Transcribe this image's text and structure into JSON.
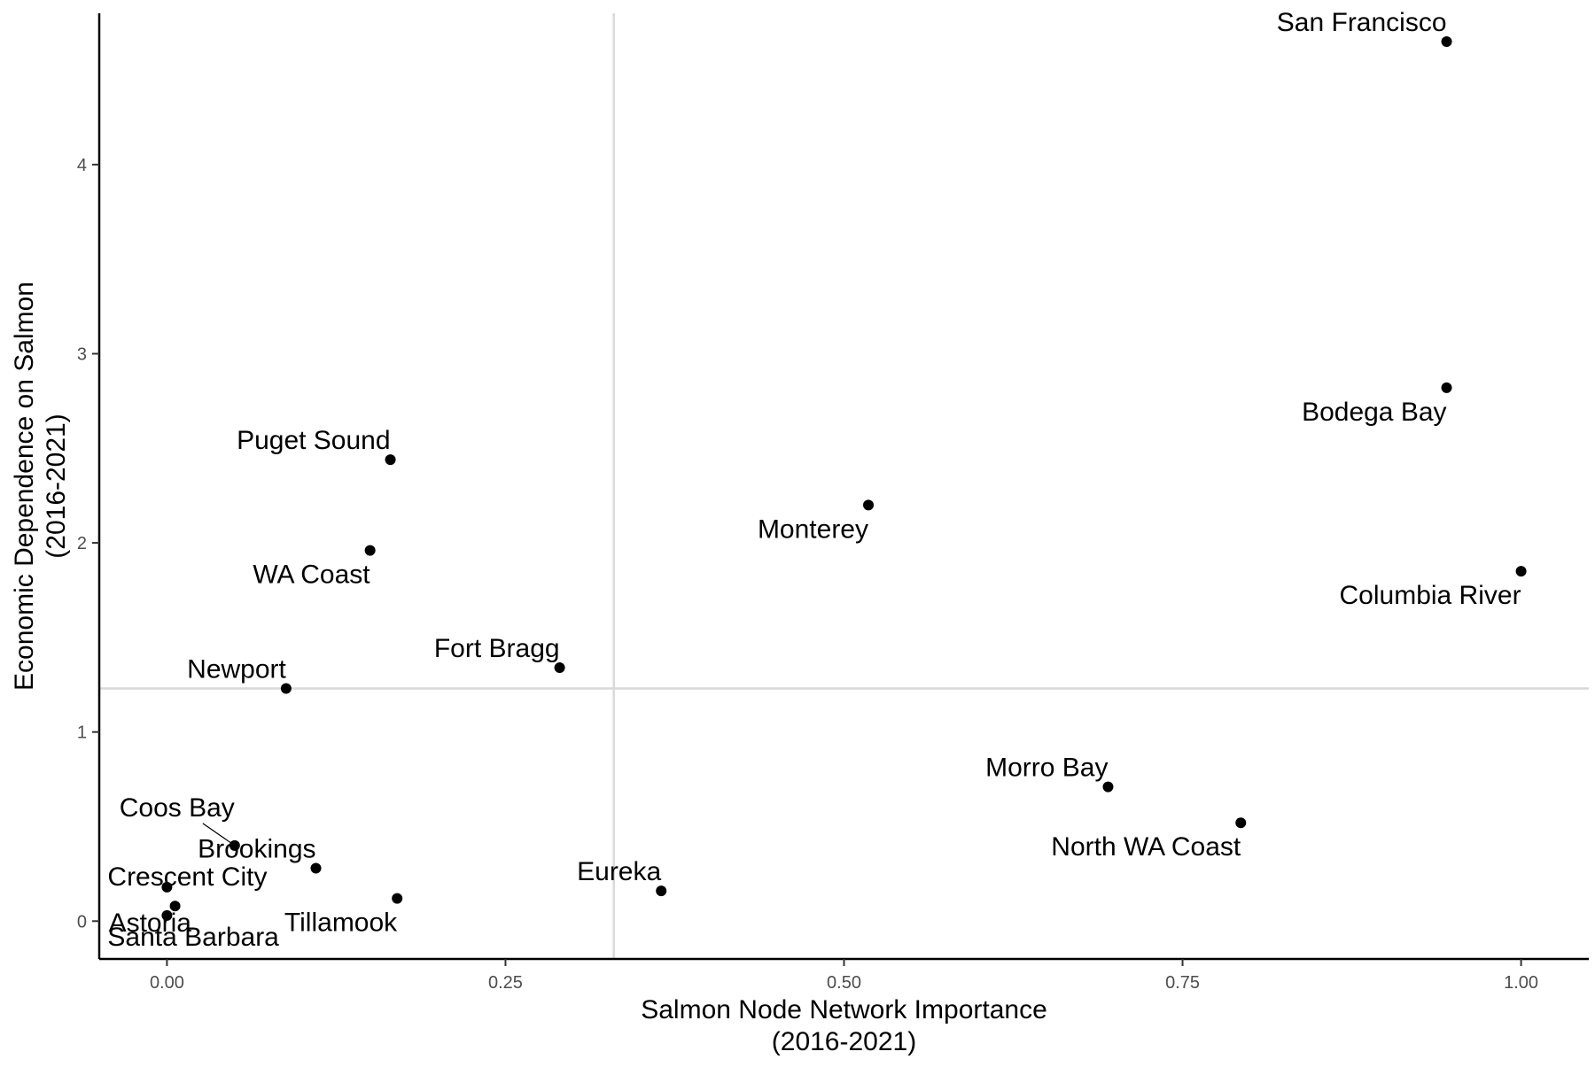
{
  "chart_data": {
    "type": "scatter",
    "xlabel": [
      "Salmon Node Network Importance",
      "(2016-2021)"
    ],
    "ylabel": [
      "Economic Dependence on Salmon",
      "(2016-2021)"
    ],
    "xlim": [
      -0.05,
      1.05
    ],
    "ylim": [
      -0.2,
      4.8
    ],
    "x_ticks": [
      0,
      0.25,
      0.5,
      0.75,
      1
    ],
    "x_tick_labels": [
      "0.00",
      "0.25",
      "0.50",
      "0.75",
      "1.00"
    ],
    "y_ticks": [
      0,
      1,
      2,
      3,
      4
    ],
    "y_tick_labels": [
      "0",
      "1",
      "2",
      "3",
      "4"
    ],
    "reference_lines": {
      "vertical_x": 0.33,
      "horizontal_y": 1.23
    },
    "grid": false,
    "points": [
      {
        "label": "San Francisco",
        "x": 0.945,
        "y": 4.65
      },
      {
        "label": "Bodega Bay",
        "x": 0.945,
        "y": 2.82
      },
      {
        "label": "Columbia River",
        "x": 1.0,
        "y": 1.85
      },
      {
        "label": "Monterey",
        "x": 0.518,
        "y": 2.2
      },
      {
        "label": "Puget Sound",
        "x": 0.165,
        "y": 2.44
      },
      {
        "label": "WA Coast",
        "x": 0.15,
        "y": 1.96
      },
      {
        "label": "Fort Bragg",
        "x": 0.29,
        "y": 1.34
      },
      {
        "label": "Newport",
        "x": 0.088,
        "y": 1.23
      },
      {
        "label": "Morro Bay",
        "x": 0.695,
        "y": 0.71
      },
      {
        "label": "North WA Coast",
        "x": 0.793,
        "y": 0.52
      },
      {
        "label": "Coos Bay",
        "x": 0.05,
        "y": 0.4
      },
      {
        "label": "Brookings",
        "x": 0.11,
        "y": 0.28
      },
      {
        "label": "Eureka",
        "x": 0.365,
        "y": 0.16
      },
      {
        "label": "Tillamook",
        "x": 0.17,
        "y": 0.12
      },
      {
        "label": "Crescent City",
        "x": 0.0,
        "y": 0.18
      },
      {
        "label": "Astoria",
        "x": 0.006,
        "y": 0.08
      },
      {
        "label": "Santa Barbara",
        "x": 0.0,
        "y": 0.03
      }
    ]
  }
}
